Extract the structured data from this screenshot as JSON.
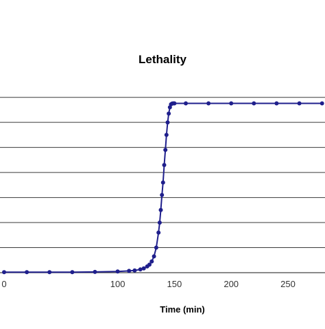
{
  "chart_data": {
    "type": "line",
    "title": "Lethality",
    "xlabel": "Time (min)",
    "ylabel": "",
    "x_ticks": [
      "0",
      "100",
      "150",
      "200",
      "250"
    ],
    "xlim": [
      0,
      280
    ],
    "ylim": [
      0,
      7
    ],
    "grid": true,
    "legend": "none",
    "series_color": "#1f1f8c",
    "series": [
      {
        "x": [
          0,
          20,
          40,
          60,
          80,
          100,
          110,
          115,
          120,
          123,
          126,
          128,
          130,
          132,
          134,
          136,
          137,
          138,
          139,
          140,
          141,
          142,
          143,
          144,
          145,
          146,
          147,
          148,
          149,
          150,
          160,
          180,
          200,
          220,
          240,
          260,
          280
        ],
        "y": [
          0.02,
          0.02,
          0.02,
          0.02,
          0.03,
          0.05,
          0.07,
          0.09,
          0.13,
          0.17,
          0.25,
          0.32,
          0.45,
          0.65,
          1.0,
          1.6,
          2.0,
          2.5,
          3.1,
          3.6,
          4.3,
          4.9,
          5.5,
          6.0,
          6.35,
          6.6,
          6.72,
          6.75,
          6.76,
          6.76,
          6.76,
          6.76,
          6.76,
          6.76,
          6.76,
          6.76,
          6.76
        ]
      }
    ]
  }
}
